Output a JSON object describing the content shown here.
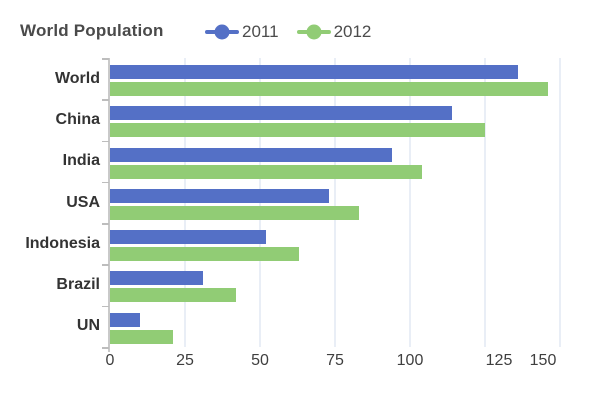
{
  "title": "World Population",
  "legend": {
    "items": [
      {
        "label": "2011",
        "color": "#5470c6"
      },
      {
        "label": "2012",
        "color": "#91cc75"
      }
    ],
    "position": "top"
  },
  "chart_data": {
    "type": "bar",
    "orientation": "horizontal",
    "title": "World Population",
    "categories": [
      "World",
      "China",
      "India",
      "USA",
      "Indonesia",
      "Brazil",
      "UN"
    ],
    "series": [
      {
        "name": "2011",
        "color": "#5470c6",
        "values": [
          136,
          114,
          94,
          73,
          52,
          31,
          10
        ]
      },
      {
        "name": "2012",
        "color": "#91cc75",
        "values": [
          146,
          125,
          104,
          83,
          63,
          42,
          21
        ]
      }
    ],
    "xlabel": "",
    "ylabel": "",
    "xlim": [
      0,
      150
    ],
    "x_ticks": [
      0,
      25,
      50,
      75,
      100,
      125,
      150
    ],
    "grid": true,
    "legend_position": "top",
    "colors": {
      "grid": "#e9eef6",
      "axis_line": "#c9c9c9",
      "axis_text": "#3f3f3f",
      "category_text": "#333333",
      "title_text": "#4a4a4a"
    }
  }
}
